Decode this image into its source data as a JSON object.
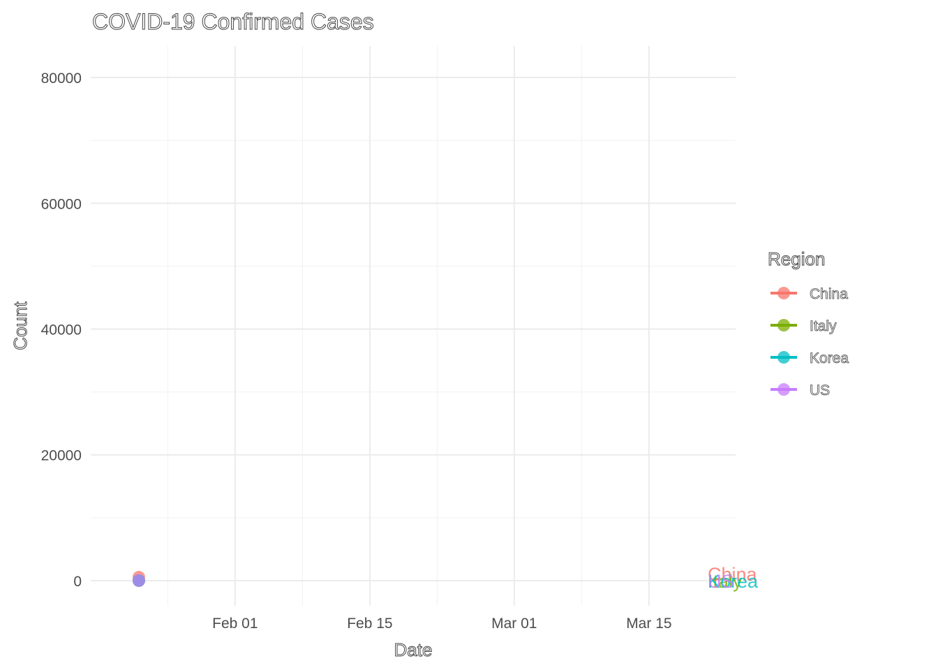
{
  "chart_data": {
    "type": "line",
    "title": "COVID-19 Confirmed Cases",
    "xlabel": "Date",
    "ylabel": "Count",
    "legend_title": "Region",
    "legend_position": "right",
    "grid": true,
    "x_range": [
      "2020-01-17",
      "2020-03-24"
    ],
    "ylim": [
      -4000,
      85000
    ],
    "x_ticks": [
      {
        "date": "2020-02-01",
        "label": "Feb 01"
      },
      {
        "date": "2020-02-15",
        "label": "Feb 15"
      },
      {
        "date": "2020-03-01",
        "label": "Mar 01"
      },
      {
        "date": "2020-03-15",
        "label": "Mar 15"
      }
    ],
    "x_minor_ticks": [
      "2020-01-25",
      "2020-02-08",
      "2020-02-22",
      "2020-03-08"
    ],
    "y_ticks": [
      0,
      20000,
      40000,
      60000,
      80000
    ],
    "y_minor_ticks": [
      10000,
      30000,
      50000,
      70000
    ],
    "series": [
      {
        "name": "China",
        "color": "#F8766D",
        "points": [
          {
            "x": "2020-01-22",
            "y": 548
          }
        ],
        "end_label": "China",
        "end_label_y": 0
      },
      {
        "name": "Italy",
        "color": "#7CAE00",
        "points": [
          {
            "x": "2020-01-22",
            "y": 0
          }
        ],
        "end_label": "Italy",
        "end_label_y": 0
      },
      {
        "name": "Korea",
        "color": "#00BFC4",
        "points": [
          {
            "x": "2020-01-22",
            "y": 1
          }
        ],
        "end_label": "Korea",
        "end_label_y": 0
      },
      {
        "name": "US",
        "color": "#C77CFF",
        "points": [
          {
            "x": "2020-01-22",
            "y": 1
          }
        ],
        "end_label": "US",
        "end_label_y": 0
      }
    ]
  }
}
